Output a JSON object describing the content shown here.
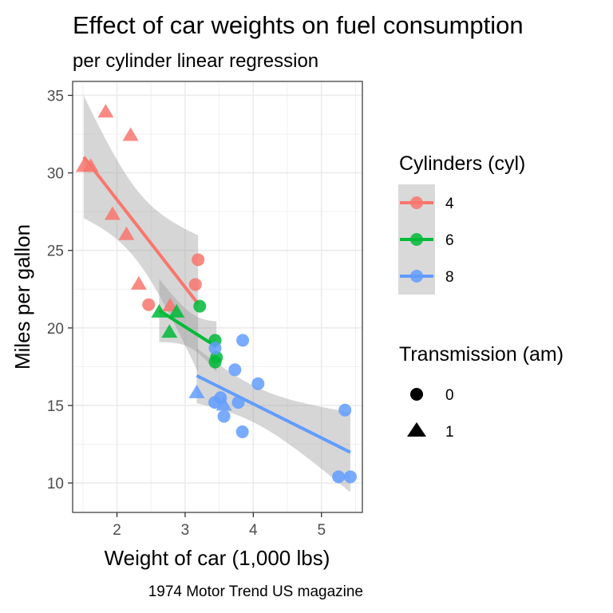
{
  "chart_data": {
    "type": "scatter",
    "title": "Effect of car weights on fuel consumption",
    "subtitle": "per cylinder linear regression",
    "xlabel": "Weight of car (1,000 lbs)",
    "ylabel": "Miles per gallon",
    "caption": "1974 Motor Trend US magazine",
    "xlim": [
      1.35,
      5.6
    ],
    "ylim": [
      8.1,
      35.9
    ],
    "x_ticks": [
      2,
      3,
      4,
      5
    ],
    "x_tick_labels": [
      "2",
      "3",
      "4",
      "5"
    ],
    "y_ticks": [
      10,
      15,
      20,
      25,
      30,
      35
    ],
    "y_tick_labels": [
      "10",
      "15",
      "20",
      "25",
      "30",
      "35"
    ],
    "grid": true,
    "legend_placement": "right",
    "legends": [
      {
        "title": "Cylinders (cyl)",
        "entries": [
          {
            "label": "4",
            "color": "#F8766D"
          },
          {
            "label": "6",
            "color": "#00BA38"
          },
          {
            "label": "8",
            "color": "#619CFF"
          }
        ]
      },
      {
        "title": "Transmission (am)",
        "entries": [
          {
            "label": "0",
            "shape": "circle"
          },
          {
            "label": "1",
            "shape": "triangle"
          }
        ]
      }
    ],
    "series": [
      {
        "name": "4",
        "color": "#F8766D",
        "points": [
          {
            "wt": 2.32,
            "mpg": 22.8,
            "am": 1
          },
          {
            "wt": 3.19,
            "mpg": 24.4,
            "am": 0
          },
          {
            "wt": 3.15,
            "mpg": 22.8,
            "am": 0
          },
          {
            "wt": 2.2,
            "mpg": 32.4,
            "am": 1
          },
          {
            "wt": 1.615,
            "mpg": 30.4,
            "am": 1
          },
          {
            "wt": 1.835,
            "mpg": 33.9,
            "am": 1
          },
          {
            "wt": 2.465,
            "mpg": 21.5,
            "am": 0
          },
          {
            "wt": 1.935,
            "mpg": 27.3,
            "am": 1
          },
          {
            "wt": 2.14,
            "mpg": 26.0,
            "am": 1
          },
          {
            "wt": 1.513,
            "mpg": 30.4,
            "am": 1
          },
          {
            "wt": 2.78,
            "mpg": 21.4,
            "am": 1
          }
        ],
        "regression": {
          "intercept": 39.571,
          "slope": -5.647,
          "x_range": [
            1.513,
            3.19
          ]
        }
      },
      {
        "name": "6",
        "color": "#00BA38",
        "points": [
          {
            "wt": 2.62,
            "mpg": 21.0,
            "am": 1
          },
          {
            "wt": 2.875,
            "mpg": 21.0,
            "am": 1
          },
          {
            "wt": 3.215,
            "mpg": 21.4,
            "am": 0
          },
          {
            "wt": 3.46,
            "mpg": 18.1,
            "am": 0
          },
          {
            "wt": 3.44,
            "mpg": 19.2,
            "am": 0
          },
          {
            "wt": 3.44,
            "mpg": 17.8,
            "am": 0
          },
          {
            "wt": 2.77,
            "mpg": 19.7,
            "am": 1
          }
        ],
        "regression": {
          "intercept": 28.409,
          "slope": -2.78,
          "x_range": [
            2.62,
            3.46
          ]
        }
      },
      {
        "name": "8",
        "color": "#619CFF",
        "points": [
          {
            "wt": 3.44,
            "mpg": 18.7,
            "am": 0
          },
          {
            "wt": 3.57,
            "mpg": 14.3,
            "am": 0
          },
          {
            "wt": 4.07,
            "mpg": 16.4,
            "am": 0
          },
          {
            "wt": 3.73,
            "mpg": 17.3,
            "am": 0
          },
          {
            "wt": 3.78,
            "mpg": 15.2,
            "am": 0
          },
          {
            "wt": 5.25,
            "mpg": 10.4,
            "am": 0
          },
          {
            "wt": 5.424,
            "mpg": 10.4,
            "am": 0
          },
          {
            "wt": 5.345,
            "mpg": 14.7,
            "am": 0
          },
          {
            "wt": 3.52,
            "mpg": 15.5,
            "am": 0
          },
          {
            "wt": 3.435,
            "mpg": 15.2,
            "am": 0
          },
          {
            "wt": 3.84,
            "mpg": 13.3,
            "am": 0
          },
          {
            "wt": 3.845,
            "mpg": 19.2,
            "am": 0
          },
          {
            "wt": 3.17,
            "mpg": 15.8,
            "am": 1
          },
          {
            "wt": 3.57,
            "mpg": 15.0,
            "am": 1
          }
        ],
        "regression": {
          "intercept": 23.868,
          "slope": -2.192,
          "x_range": [
            3.17,
            5.424
          ]
        }
      }
    ]
  }
}
